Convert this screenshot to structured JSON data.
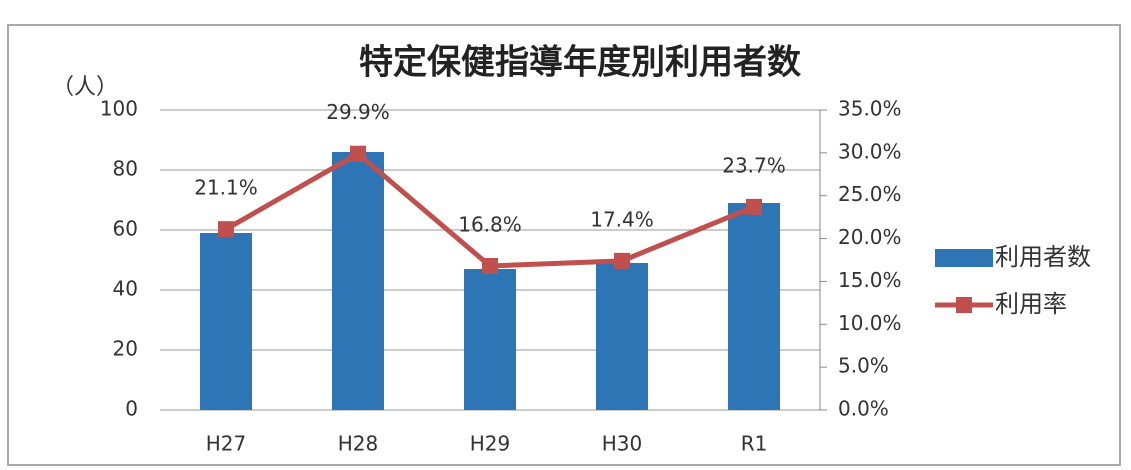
{
  "chart_data": {
    "type": "combo",
    "title": "特定保健指導年度別利用者数",
    "y_label": "（人）",
    "categories": [
      "H27",
      "H28",
      "H29",
      "H30",
      "R1"
    ],
    "series": [
      {
        "name": "利用者数",
        "type": "bar",
        "color": "#2e75b6",
        "values": [
          59,
          86,
          47,
          49,
          69
        ]
      },
      {
        "name": "利用率",
        "type": "line",
        "axis": "y2",
        "color": "#c0504d",
        "values": [
          21.1,
          29.9,
          16.8,
          17.4,
          23.7
        ],
        "value_labels": [
          "21.1%",
          "29.9%",
          "16.8%",
          "17.4%",
          "23.7%"
        ]
      }
    ],
    "ylim": [
      0,
      100
    ],
    "yticks": [
      0,
      20,
      40,
      60,
      80,
      100
    ],
    "y2lim": [
      0,
      35
    ],
    "y2ticks": [
      {
        "value": 0,
        "label": "0.0%"
      },
      {
        "value": 5,
        "label": "5.0%"
      },
      {
        "value": 10,
        "label": "10.0%"
      },
      {
        "value": 15,
        "label": "15.0%"
      },
      {
        "value": 20,
        "label": "20.0%"
      },
      {
        "value": 25,
        "label": "25.0%"
      },
      {
        "value": 30,
        "label": "30.0%"
      },
      {
        "value": 35,
        "label": "35.0%"
      }
    ],
    "grid": true,
    "legend": "right"
  }
}
